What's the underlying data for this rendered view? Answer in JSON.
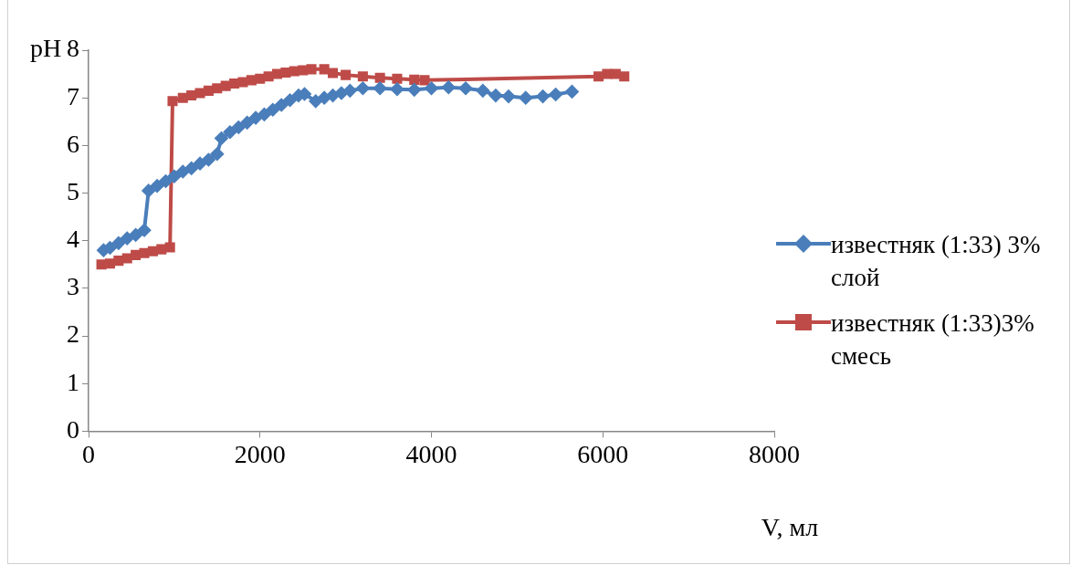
{
  "chart_data": {
    "type": "line",
    "xlabel": "V, мл",
    "ylabel": "pH",
    "xlim": [
      0,
      8000
    ],
    "xticks": [
      0,
      2000,
      4000,
      6000,
      8000
    ],
    "ylim": [
      0,
      8
    ],
    "yticks": [
      0,
      1,
      2,
      3,
      4,
      5,
      6,
      7,
      8
    ],
    "grid": false,
    "legend": "right",
    "series": [
      {
        "name": "известняк (1:33) 3% слой",
        "color": "#4a7ebb",
        "marker": "diamond",
        "x": [
          175,
          250,
          350,
          450,
          550,
          650,
          700,
          800,
          900,
          1000,
          1100,
          1200,
          1300,
          1400,
          1500,
          1550,
          1650,
          1750,
          1850,
          1950,
          2050,
          2150,
          2250,
          2350,
          2450,
          2520,
          2650,
          2750,
          2850,
          2950,
          3050,
          3200,
          3400,
          3600,
          3800,
          4000,
          4200,
          4400,
          4600,
          4750,
          4900,
          5100,
          5300,
          5450,
          5640
        ],
        "values": [
          3.8,
          3.85,
          3.95,
          4.05,
          4.12,
          4.22,
          5.05,
          5.15,
          5.25,
          5.35,
          5.45,
          5.52,
          5.62,
          5.7,
          5.82,
          6.15,
          6.28,
          6.38,
          6.48,
          6.58,
          6.65,
          6.75,
          6.85,
          6.95,
          7.05,
          7.08,
          6.93,
          7.0,
          7.05,
          7.1,
          7.15,
          7.2,
          7.2,
          7.18,
          7.17,
          7.2,
          7.22,
          7.2,
          7.15,
          7.05,
          7.03,
          7.0,
          7.03,
          7.07,
          7.13
        ]
      },
      {
        "name": "известняк (1:33)3% смесь",
        "color": "#be4b48",
        "marker": "square",
        "x": [
          150,
          250,
          350,
          450,
          550,
          650,
          750,
          850,
          950,
          980,
          1100,
          1200,
          1300,
          1400,
          1500,
          1600,
          1700,
          1800,
          1900,
          2000,
          2100,
          2200,
          2300,
          2400,
          2500,
          2600,
          2750,
          2850,
          3000,
          3200,
          3400,
          3600,
          3800,
          3920,
          5950,
          6050,
          6150,
          6250
        ],
        "values": [
          3.5,
          3.52,
          3.58,
          3.63,
          3.7,
          3.74,
          3.78,
          3.82,
          3.86,
          6.93,
          7.0,
          7.05,
          7.1,
          7.15,
          7.2,
          7.25,
          7.3,
          7.33,
          7.37,
          7.4,
          7.45,
          7.5,
          7.53,
          7.56,
          7.58,
          7.6,
          7.6,
          7.52,
          7.48,
          7.45,
          7.42,
          7.4,
          7.38,
          7.37,
          7.45,
          7.5,
          7.5,
          7.45
        ]
      }
    ]
  }
}
